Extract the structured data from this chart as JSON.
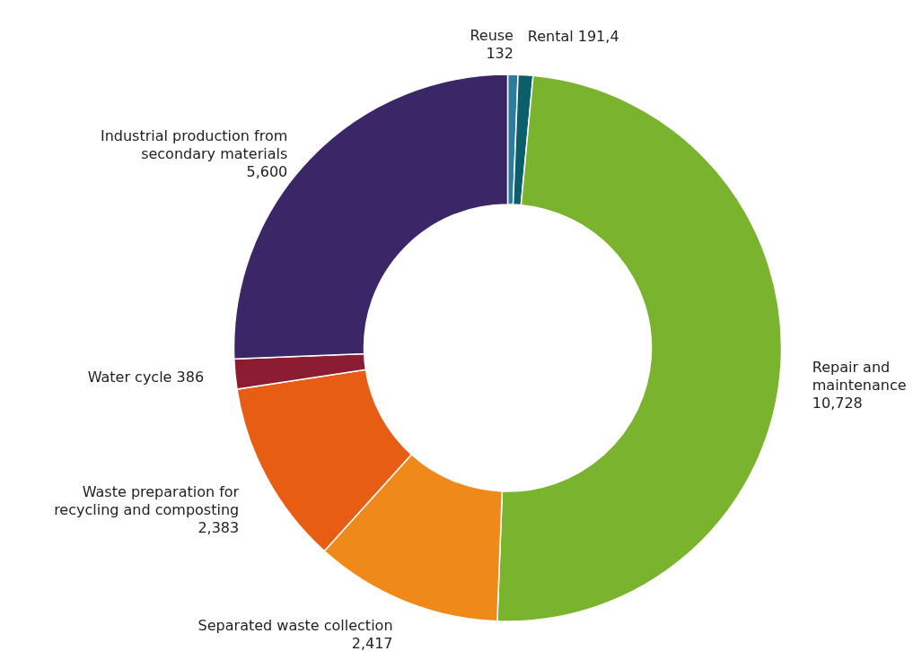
{
  "chart_data": {
    "type": "donut",
    "categories": [
      "Reuse",
      "Rental",
      "Repair and maintenance",
      "Separated waste collection",
      "Waste preparation for recycling and composting",
      "Water cycle",
      "Industrial production from secondary materials"
    ],
    "values": [
      132,
      191.4,
      10728,
      2417,
      2383,
      386,
      5600
    ],
    "value_labels": [
      "132",
      "191,4",
      "10,728",
      "2,417",
      "2,383",
      "386",
      "5,600"
    ],
    "colors": [
      "#2a7d9c",
      "#0b5e6b",
      "#7ab32e",
      "#ef8a1a",
      "#e85d14",
      "#8b1c32",
      "#3b2668"
    ]
  }
}
